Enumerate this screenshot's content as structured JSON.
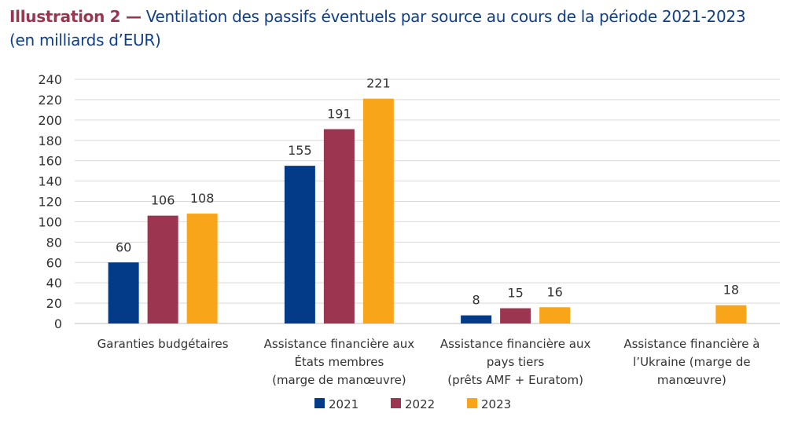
{
  "title": {
    "label": "Illustration 2 —",
    "text": "Ventilation des passifs éventuels par source au cours de la période 2021-2023",
    "subtitle": "(en milliards d’EUR)"
  },
  "chart_data": {
    "type": "bar",
    "title": "Ventilation des passifs éventuels par source au cours de la période 2021-2023",
    "ylabel": "",
    "xlabel": "",
    "ylim": [
      0,
      240
    ],
    "yticks": [
      0,
      20,
      40,
      60,
      80,
      100,
      120,
      140,
      160,
      180,
      200,
      220,
      240
    ],
    "grid": true,
    "legend": "bottom",
    "categories": [
      [
        "Garanties budgétaires"
      ],
      [
        "Assistance financière aux",
        "États membres",
        "(marge de manœuvre)"
      ],
      [
        "Assistance financière aux",
        "pays tiers",
        "(prêts AMF + Euratom)"
      ],
      [
        "Assistance financière à",
        "l’Ukraine (marge de",
        "manœuvre)"
      ]
    ],
    "series": [
      {
        "name": "2021",
        "color": "#033b89",
        "values": [
          60,
          155,
          8,
          null
        ]
      },
      {
        "name": "2022",
        "color": "#9b3550",
        "values": [
          106,
          191,
          15,
          null
        ]
      },
      {
        "name": "2023",
        "color": "#f9a51a",
        "values": [
          108,
          221,
          16,
          18
        ]
      }
    ]
  }
}
